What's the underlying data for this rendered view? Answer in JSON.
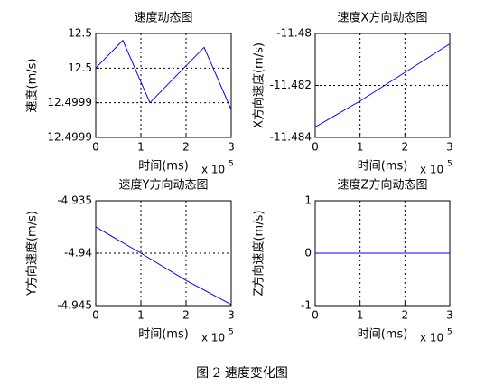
{
  "chart_data": [
    {
      "type": "line",
      "title": "速度动态图",
      "xlabel": "时间(ms)",
      "ylabel": "速度(m/s)",
      "x_scale_label": {
        "text": "x 10",
        "exponent": "5"
      },
      "x": [
        0,
        0.6,
        1.2,
        2.4,
        3
      ],
      "values": [
        12.49999,
        12.50003,
        12.49994,
        12.50002,
        12.49993
      ],
      "color": "#0000ff",
      "xlim": [
        0,
        3
      ],
      "xticks": [
        0,
        1,
        2,
        3
      ],
      "ylim": [
        12.49989,
        12.50004
      ],
      "yticks": [
        {
          "value": 12.50004,
          "label": "12.5"
        },
        {
          "value": 12.49999,
          "label": "12.5"
        },
        {
          "value": 12.49994,
          "label": "12.4999"
        },
        {
          "value": 12.49989,
          "label": "12.4999"
        }
      ],
      "grid": true
    },
    {
      "type": "line",
      "title": "速度X方向动态图",
      "xlabel": "时间(ms)",
      "ylabel": "X方向速度(m/s)",
      "x_scale_label": {
        "text": "x 10",
        "exponent": "5"
      },
      "x": [
        0,
        1,
        2,
        3
      ],
      "values": [
        -11.4836,
        -11.4826,
        -11.4815,
        -11.4804
      ],
      "color": "#0000ff",
      "xlim": [
        0,
        3
      ],
      "xticks": [
        0,
        1,
        2,
        3
      ],
      "ylim": [
        -11.484,
        -11.48
      ],
      "yticks": [
        -11.48,
        -11.482,
        -11.484
      ],
      "grid": true
    },
    {
      "type": "line",
      "title": "速度Y方向动态图",
      "xlabel": "时间(ms)",
      "ylabel": "Y方向速度(m/s)",
      "x_scale_label": {
        "text": "x 10",
        "exponent": "5"
      },
      "x": [
        0,
        1,
        2,
        3
      ],
      "values": [
        -4.9375,
        -4.94,
        -4.9426,
        -4.9449
      ],
      "color": "#0000ff",
      "xlim": [
        0,
        3
      ],
      "xticks": [
        0,
        1,
        2,
        3
      ],
      "ylim": [
        -4.945,
        -4.935
      ],
      "yticks": [
        -4.935,
        -4.94,
        -4.945
      ],
      "grid": true
    },
    {
      "type": "line",
      "title": "速度Z方向动态图",
      "xlabel": "时间(ms)",
      "ylabel": "Z方向速度(m/s)",
      "x_scale_label": {
        "text": "x 10",
        "exponent": "5"
      },
      "x": [
        0,
        3
      ],
      "values": [
        0,
        0
      ],
      "color": "#0000ff",
      "xlim": [
        0,
        3
      ],
      "xticks": [
        0,
        1,
        2,
        3
      ],
      "ylim": [
        -1,
        1
      ],
      "yticks": [
        1,
        0,
        -1
      ],
      "grid": true
    }
  ],
  "caption": "图 2 速度变化图"
}
